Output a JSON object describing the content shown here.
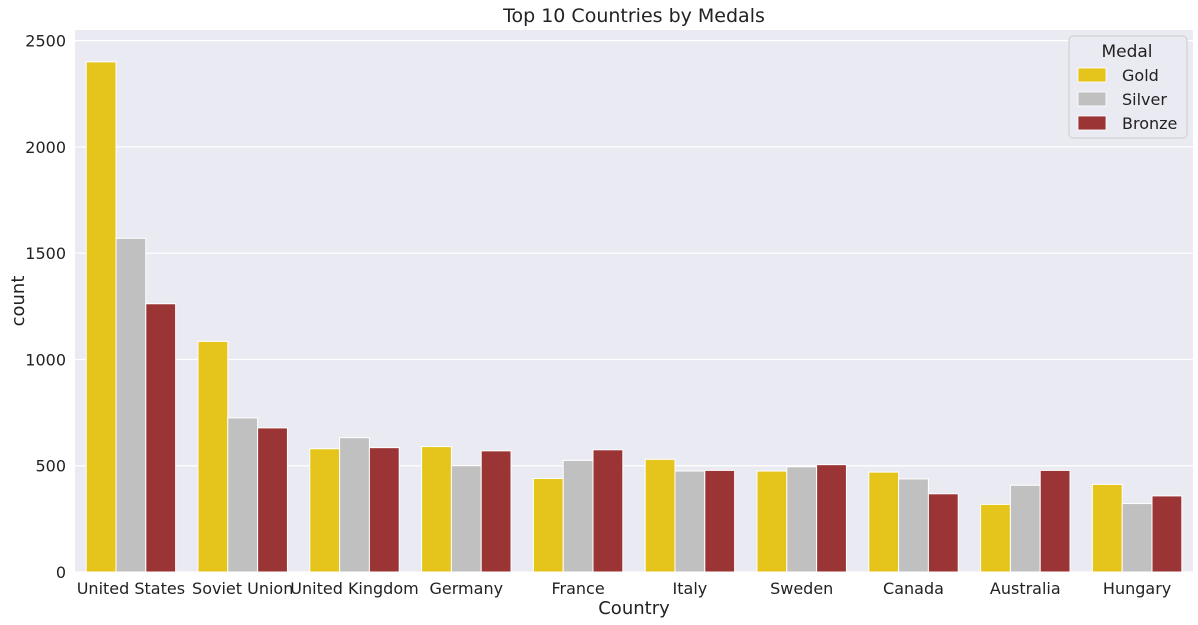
{
  "chart_data": {
    "type": "bar",
    "title": "Top 10 Countries by Medals",
    "xlabel": "Country",
    "ylabel": "count",
    "ylim": [
      0,
      2550
    ],
    "yticks": [
      0,
      500,
      1000,
      1500,
      2000,
      2500
    ],
    "ytick_labels": [
      "0",
      "500",
      "1000",
      "1500",
      "2000",
      "2500"
    ],
    "grid": true,
    "legend": {
      "title": "Medal",
      "placement": "top-right"
    },
    "categories": [
      "United States",
      "Soviet Union",
      "United Kingdom",
      "Germany",
      "France",
      "Italy",
      "Sweden",
      "Canada",
      "Australia",
      "Hungary"
    ],
    "series": [
      {
        "name": "Gold",
        "color": "#e5c41c",
        "values": [
          2400,
          1085,
          580,
          590,
          440,
          530,
          475,
          470,
          318,
          412
        ]
      },
      {
        "name": "Silver",
        "color": "#c0c0c0",
        "values": [
          1570,
          725,
          632,
          500,
          525,
          475,
          495,
          438,
          408,
          322
        ]
      },
      {
        "name": "Bronze",
        "color": "#9b3535",
        "values": [
          1262,
          678,
          585,
          570,
          575,
          478,
          505,
          368,
          478,
          358
        ]
      }
    ]
  },
  "colors": {
    "plot_background": "#eaeaf2",
    "grid": "#ffffff"
  }
}
